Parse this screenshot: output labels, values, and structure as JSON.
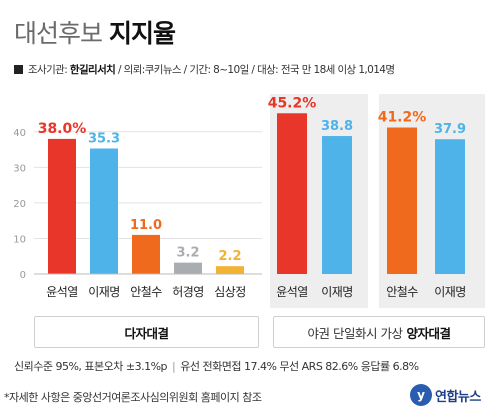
{
  "header": {
    "title_light": "대선후보 ",
    "title_bold": "지지율"
  },
  "survey": {
    "prefix": "조사기관: ",
    "org": "한길리서치",
    "rest": " / 의뢰:쿠키뉴스 / 기간: 8~10일 / 대상: 전국 만 18세 이상 1,014명"
  },
  "colors": {
    "red": "#e8362a",
    "blue": "#4db3e8",
    "orange": "#f06a1e",
    "gray": "#a9adb2",
    "yellow": "#f2b233",
    "panel_bg": "#eeeeee"
  },
  "chart_data": [
    {
      "type": "bar",
      "categories": [
        "윤석열",
        "이재명",
        "안철수",
        "허경영",
        "심상정"
      ],
      "values": [
        38.0,
        35.3,
        11.0,
        3.2,
        2.2
      ],
      "labels": [
        "38.0%",
        "35.3",
        "11.0",
        "3.2",
        "2.2"
      ],
      "colors": [
        "#e8362a",
        "#4db3e8",
        "#f06a1e",
        "#a9adb2",
        "#f2b233"
      ],
      "yticks": [
        "0",
        "10",
        "20",
        "30",
        "40"
      ],
      "ylim": [
        0,
        45
      ],
      "grid": true
    },
    {
      "type": "bar",
      "categories": [
        "윤석열",
        "이재명"
      ],
      "values": [
        45.2,
        38.8
      ],
      "labels": [
        "45.2%",
        "38.8"
      ],
      "colors": [
        "#e8362a",
        "#4db3e8"
      ],
      "ylim": [
        0,
        45
      ]
    },
    {
      "type": "bar",
      "categories": [
        "안철수",
        "이재명"
      ],
      "values": [
        41.2,
        37.9
      ],
      "labels": [
        "41.2%",
        "37.9"
      ],
      "colors": [
        "#f06a1e",
        "#4db3e8"
      ],
      "ylim": [
        0,
        45
      ]
    }
  ],
  "captions": {
    "left": "다자대결",
    "right_plain": "야권 단일화시 가상",
    "right_bold": "양자대결"
  },
  "footer": {
    "left": "신뢰수준 95%, 표본오차 ±3.1%p",
    "sep": "|",
    "right": "유선 전화면접 17.4% 무선 ARS 82.6% 응답률 6.8%",
    "note": "*자세한 사항은 중앙선거여론조사심의위원회 홈페이지 참조"
  },
  "logo": {
    "mark": "y",
    "text": "연합뉴스"
  }
}
